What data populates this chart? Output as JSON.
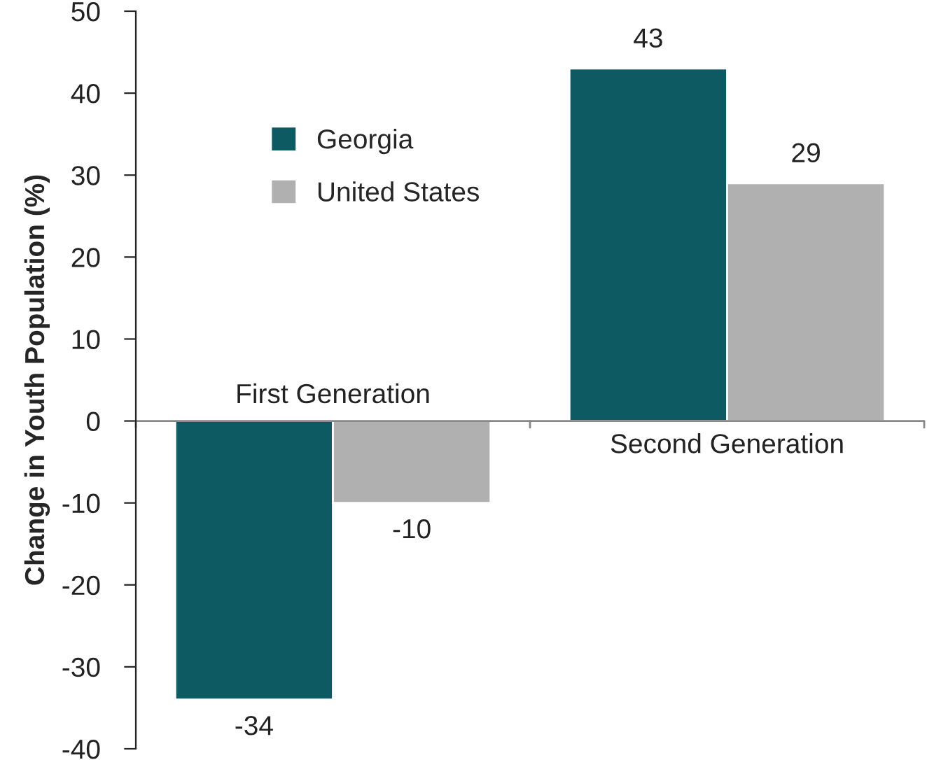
{
  "chart_data": {
    "type": "bar",
    "ylabel": "Change in Youth Population (%)",
    "categories": [
      "First Generation",
      "Second Generation"
    ],
    "series": [
      {
        "name": "Georgia",
        "color": "#0e5a63",
        "values": [
          -34,
          43
        ]
      },
      {
        "name": "United States",
        "color": "#b0b0b0",
        "values": [
          -10,
          29
        ]
      }
    ],
    "ylim": [
      -40,
      50
    ],
    "yticks": [
      -40,
      -30,
      -20,
      -10,
      0,
      10,
      20,
      30,
      40,
      50
    ],
    "data_labels": true,
    "legend": "top left"
  }
}
